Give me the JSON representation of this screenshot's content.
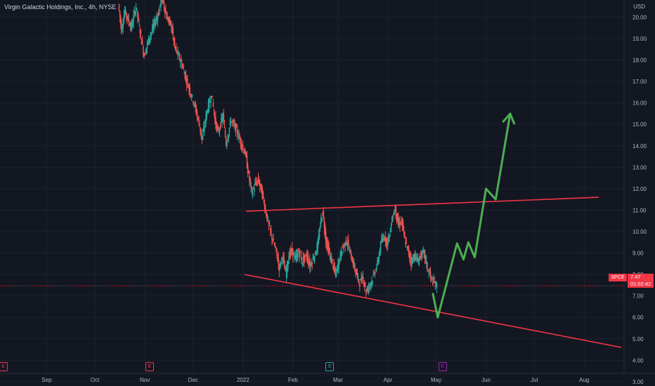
{
  "header": {
    "legend": "Virgin Galactic Holdings, Inc., 4h, NYSE",
    "currency": "USD"
  },
  "price_tag": {
    "symbol": "SPCE",
    "price": "7.47",
    "countdown": "01:02:42"
  },
  "events": [
    {
      "icon": "earnings-icon",
      "letter": "E",
      "color": "#f23645",
      "date": "2021-08-05"
    },
    {
      "icon": "earnings-icon",
      "letter": "E",
      "color": "#f23645",
      "date": "2021-11-04"
    },
    {
      "icon": "earnings-icon",
      "letter": "E",
      "color": "#26a69a",
      "date": "2022-02-24"
    },
    {
      "icon": "earnings-icon",
      "letter": "E",
      "color": "#9c27b0",
      "date": "2022-05-05"
    }
  ],
  "chart_data": {
    "type": "candlestick",
    "x_axis": {
      "type": "time",
      "range": [
        "2021-08-03",
        "2022-09-14"
      ],
      "tick_labels": [
        {
          "label": "Sep",
          "date": "2021-09-01"
        },
        {
          "label": "Oct",
          "date": "2021-10-01"
        },
        {
          "label": "Nov",
          "date": "2021-11-01"
        },
        {
          "label": "Dec",
          "date": "2021-12-01"
        },
        {
          "label": "2022",
          "date": "2022-01-01"
        },
        {
          "label": "Feb",
          "date": "2022-02-01"
        },
        {
          "label": "Mar",
          "date": "2022-03-01"
        },
        {
          "label": "Apr",
          "date": "2022-04-01"
        },
        {
          "label": "May",
          "date": "2022-05-01"
        },
        {
          "label": "Jun",
          "date": "2022-06-01"
        },
        {
          "label": "Jul",
          "date": "2022-07-01"
        },
        {
          "label": "Aug",
          "date": "2022-08-01"
        }
      ]
    },
    "y_axis": {
      "range": [
        2.8,
        20.8
      ],
      "position": "right",
      "tick_labels": [
        "20.00",
        "19.00",
        "18.00",
        "17.00",
        "16.00",
        "15.00",
        "14.00",
        "13.00",
        "12.00",
        "11.00",
        "10.00",
        "9.00",
        "8.00",
        "7.00",
        "6.00",
        "5.00",
        "4.00",
        "3.00"
      ]
    },
    "grid": true,
    "colors": {
      "up": "#26a69a",
      "down": "#ef5350",
      "trendline": "#f23645",
      "projection": "#4caf50",
      "last_price": "#f23645"
    },
    "price_path": [
      [
        "2021-10-16",
        20.6
      ],
      [
        "2021-10-18",
        19.4
      ],
      [
        "2021-10-20",
        20.3
      ],
      [
        "2021-10-24",
        19.5
      ],
      [
        "2021-10-27",
        20.5
      ],
      [
        "2021-10-30",
        19.1
      ],
      [
        "2021-11-01",
        18.2
      ],
      [
        "2021-11-04",
        19.0
      ],
      [
        "2021-11-07",
        19.6
      ],
      [
        "2021-11-10",
        20.2
      ],
      [
        "2021-11-12",
        21.0
      ],
      [
        "2021-11-15",
        20.0
      ],
      [
        "2021-11-18",
        19.6
      ],
      [
        "2021-11-20",
        18.6
      ],
      [
        "2021-11-24",
        17.9
      ],
      [
        "2021-11-28",
        16.9
      ],
      [
        "2021-12-02",
        16.0
      ],
      [
        "2021-12-05",
        15.1
      ],
      [
        "2021-12-07",
        14.3
      ],
      [
        "2021-12-10",
        15.6
      ],
      [
        "2021-12-13",
        16.4
      ],
      [
        "2021-12-15",
        15.2
      ],
      [
        "2021-12-17",
        14.6
      ],
      [
        "2021-12-20",
        15.4
      ],
      [
        "2021-12-22",
        14.1
      ],
      [
        "2021-12-25",
        15.2
      ],
      [
        "2021-12-28",
        14.8
      ],
      [
        "2021-12-31",
        14.2
      ],
      [
        "2022-01-03",
        13.6
      ],
      [
        "2022-01-05",
        12.6
      ],
      [
        "2022-01-07",
        11.8
      ],
      [
        "2022-01-09",
        12.2
      ],
      [
        "2022-01-11",
        12.4
      ],
      [
        "2022-01-13",
        11.9
      ],
      [
        "2022-01-16",
        10.8
      ],
      [
        "2022-01-18",
        10.1
      ],
      [
        "2022-01-20",
        9.6
      ],
      [
        "2022-01-22",
        9.1
      ],
      [
        "2022-01-24",
        8.3
      ],
      [
        "2022-01-26",
        8.9
      ],
      [
        "2022-01-28",
        8.0
      ],
      [
        "2022-01-30",
        8.9
      ],
      [
        "2022-02-01",
        9.1
      ],
      [
        "2022-02-03",
        8.7
      ],
      [
        "2022-02-05",
        9.1
      ],
      [
        "2022-02-07",
        8.6
      ],
      [
        "2022-02-10",
        8.9
      ],
      [
        "2022-02-12",
        8.4
      ],
      [
        "2022-02-15",
        8.9
      ],
      [
        "2022-02-17",
        9.4
      ],
      [
        "2022-02-19",
        10.6
      ],
      [
        "2022-02-20",
        10.9
      ],
      [
        "2022-02-22",
        9.6
      ],
      [
        "2022-02-24",
        9.0
      ],
      [
        "2022-02-26",
        8.5
      ],
      [
        "2022-02-28",
        8.0
      ],
      [
        "2022-03-02",
        8.6
      ],
      [
        "2022-03-04",
        9.2
      ],
      [
        "2022-03-07",
        9.6
      ],
      [
        "2022-03-09",
        9.0
      ],
      [
        "2022-03-11",
        8.5
      ],
      [
        "2022-03-13",
        8.0
      ],
      [
        "2022-03-15",
        7.6
      ],
      [
        "2022-03-17",
        7.9
      ],
      [
        "2022-03-19",
        7.2
      ],
      [
        "2022-03-21",
        7.5
      ],
      [
        "2022-03-23",
        7.8
      ],
      [
        "2022-03-26",
        8.5
      ],
      [
        "2022-03-28",
        9.4
      ],
      [
        "2022-03-30",
        9.8
      ],
      [
        "2022-04-01",
        9.5
      ],
      [
        "2022-04-03",
        10.0
      ],
      [
        "2022-04-04",
        10.6
      ],
      [
        "2022-04-06",
        11.1
      ],
      [
        "2022-04-08",
        10.3
      ],
      [
        "2022-04-10",
        10.5
      ],
      [
        "2022-04-12",
        9.6
      ],
      [
        "2022-04-14",
        9.1
      ],
      [
        "2022-04-16",
        8.6
      ],
      [
        "2022-04-18",
        8.9
      ],
      [
        "2022-04-20",
        8.6
      ],
      [
        "2022-04-22",
        8.9
      ],
      [
        "2022-04-24",
        9.0
      ],
      [
        "2022-04-26",
        8.3
      ],
      [
        "2022-04-28",
        7.9
      ],
      [
        "2022-04-30",
        7.6
      ],
      [
        "2022-05-02",
        7.47
      ]
    ],
    "last_price": 7.47,
    "drawings": [
      {
        "kind": "trendline",
        "points": [
          [
            "2022-01-03",
            10.95
          ],
          [
            "2022-08-10",
            11.6
          ]
        ]
      },
      {
        "kind": "trendline",
        "points": [
          [
            "2022-01-02",
            8.0
          ],
          [
            "2022-08-24",
            4.6
          ]
        ]
      },
      {
        "kind": "projection-arrow",
        "points": [
          [
            "2022-04-29",
            7.1
          ],
          [
            "2022-05-02",
            6.0
          ],
          [
            "2022-05-14",
            9.45
          ],
          [
            "2022-05-18",
            8.7
          ],
          [
            "2022-05-21",
            9.5
          ],
          [
            "2022-05-25",
            8.8
          ],
          [
            "2022-06-01",
            12.0
          ],
          [
            "2022-06-07",
            11.5
          ],
          [
            "2022-06-16",
            15.5
          ]
        ]
      }
    ]
  }
}
